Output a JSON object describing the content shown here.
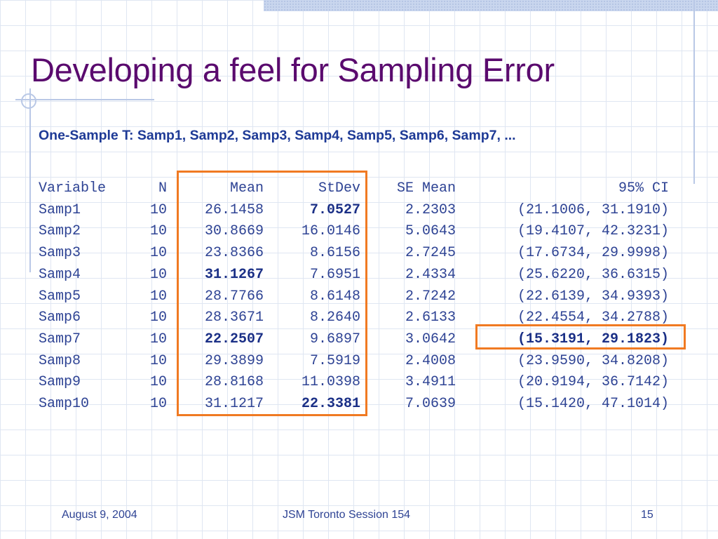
{
  "slide": {
    "title": "Developing a feel for Sampling Error",
    "subtitle": "One-Sample T: Samp1, Samp2, Samp3, Samp4, Samp5, Samp6, Samp7,  ..."
  },
  "table": {
    "headers": [
      "Variable",
      "N",
      "Mean",
      "StDev",
      "SE Mean",
      "95% CI"
    ],
    "rows": [
      {
        "variable": "Samp1",
        "n": "10",
        "mean": "26.1458",
        "stdev": "7.0527",
        "se_mean": "2.2303",
        "ci": "(21.1006, 31.1910)"
      },
      {
        "variable": "Samp2",
        "n": "10",
        "mean": "30.8669",
        "stdev": "16.0146",
        "se_mean": "5.0643",
        "ci": "(19.4107, 42.3231)"
      },
      {
        "variable": "Samp3",
        "n": "10",
        "mean": "23.8366",
        "stdev": "8.6156",
        "se_mean": "2.7245",
        "ci": "(17.6734, 29.9998)"
      },
      {
        "variable": "Samp4",
        "n": "10",
        "mean": "31.1267",
        "stdev": "7.6951",
        "se_mean": "2.4334",
        "ci": "(25.6220, 36.6315)"
      },
      {
        "variable": "Samp5",
        "n": "10",
        "mean": "28.7766",
        "stdev": "8.6148",
        "se_mean": "2.7242",
        "ci": "(22.6139, 34.9393)"
      },
      {
        "variable": "Samp6",
        "n": "10",
        "mean": "28.3671",
        "stdev": "8.2640",
        "se_mean": "2.6133",
        "ci": "(22.4554, 34.2788)"
      },
      {
        "variable": "Samp7",
        "n": "10",
        "mean": "22.2507",
        "stdev": "9.6897",
        "se_mean": "3.0642",
        "ci": "(15.3191, 29.1823)"
      },
      {
        "variable": "Samp8",
        "n": "10",
        "mean": "29.3899",
        "stdev": "7.5919",
        "se_mean": "2.4008",
        "ci": "(23.9590, 34.8208)"
      },
      {
        "variable": "Samp9",
        "n": "10",
        "mean": "28.8168",
        "stdev": "11.0398",
        "se_mean": "3.4911",
        "ci": "(20.9194, 36.7142)"
      },
      {
        "variable": "Samp10",
        "n": "10",
        "mean": "31.1217",
        "stdev": "22.3381",
        "se_mean": "7.0639",
        "ci": "(15.1420, 47.1014)"
      }
    ],
    "bold_cells": [
      "0.stdev",
      "3.mean",
      "6.mean",
      "6.ci",
      "9.stdev"
    ],
    "highlight_color": "#f07a22"
  },
  "footer": {
    "date": "August 9, 2004",
    "session": "JSM Toronto Session 154",
    "page": "15"
  }
}
